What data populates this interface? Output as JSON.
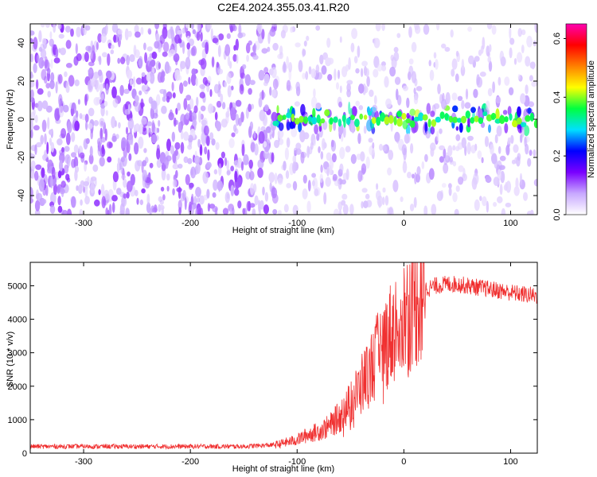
{
  "title": "C2E4.2024.355.03.41.R20",
  "chart_data": [
    {
      "type": "heatmap",
      "title": "C2E4.2024.355.03.41.R20",
      "xlabel": "Height of straight line (km)",
      "ylabel": "Frequency (Hz)",
      "xlim": [
        -350,
        125
      ],
      "ylim": [
        -50,
        50
      ],
      "x_ticks": [
        "-300",
        "-200",
        "-100",
        "0",
        "100"
      ],
      "y_ticks": [
        "-40",
        "-20",
        "0",
        "20",
        "40"
      ],
      "colorbar": {
        "label": "Normalized spectral amplitude",
        "range": [
          0,
          0.65
        ],
        "ticks": [
          "0.0",
          "0.2",
          "0.4",
          "0.6"
        ],
        "colors": [
          "#ffffff",
          "#c8a8ff",
          "#7a00ff",
          "#0000ff",
          "#00e0ff",
          "#00ff40",
          "#ffff00",
          "#ff8000",
          "#ff0000",
          "#ff00b0"
        ]
      },
      "features": [
        {
          "description": "dense broadband noise below -120 km",
          "x_range": [
            -350,
            -120
          ],
          "y_range": [
            -50,
            50
          ],
          "amplitude": 0.1
        },
        {
          "description": "signal band at 0 Hz",
          "x_range": [
            -120,
            125
          ],
          "y_center": 0,
          "amplitude": 0.3
        }
      ]
    },
    {
      "type": "line",
      "xlabel": "Height of straight line (km)",
      "ylabel": "SNR (10 * v/v)",
      "xlim": [
        -350,
        125
      ],
      "ylim": [
        0,
        5700
      ],
      "x_ticks": [
        "-300",
        "-200",
        "-100",
        "0",
        "100"
      ],
      "y_ticks": [
        "0",
        "1000",
        "2000",
        "3000",
        "4000",
        "5000"
      ],
      "color": "#f03030",
      "x": [
        -350,
        -300,
        -250,
        -200,
        -150,
        -120,
        -100,
        -90,
        -80,
        -70,
        -60,
        -50,
        -40,
        -30,
        -20,
        -10,
        0,
        10,
        20,
        30,
        40,
        50,
        60,
        70,
        80,
        90,
        100,
        110,
        125
      ],
      "y": [
        200,
        200,
        200,
        200,
        200,
        250,
        400,
        550,
        650,
        800,
        1100,
        1500,
        2000,
        2600,
        3200,
        3700,
        4100,
        4500,
        4900,
        5000,
        5050,
        5050,
        5000,
        4950,
        4900,
        4850,
        4800,
        4750,
        4700
      ]
    }
  ]
}
